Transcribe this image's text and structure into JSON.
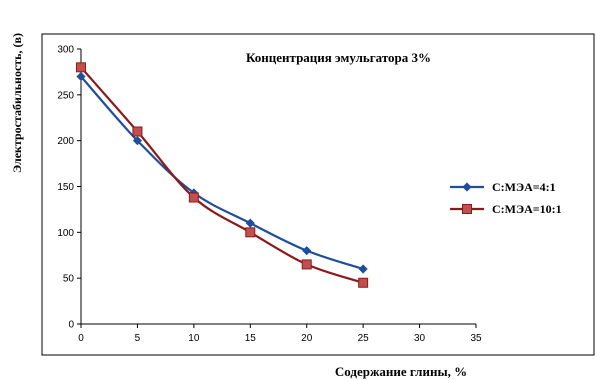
{
  "chart_data": {
    "type": "line",
    "title": "Концентрация эмульгатора 3%",
    "xlabel": "Содержание глины, %",
    "ylabel": "Электростабильность, (в)",
    "x_ticks": [
      "0",
      "5",
      "10",
      "15",
      "20",
      "25",
      "30",
      "35"
    ],
    "y_ticks": [
      "0",
      "50",
      "100",
      "150",
      "200",
      "250",
      "300"
    ],
    "xlim": [
      0,
      35
    ],
    "ylim": [
      0,
      300
    ],
    "grid": false,
    "legend_position": "right",
    "x": [
      0,
      5,
      10,
      15,
      20,
      25
    ],
    "series": [
      {
        "name": "С:МЭА=4:1",
        "values": [
          270,
          200,
          143,
          110,
          80,
          60
        ],
        "color": "#1f4e9c",
        "marker": "diamond"
      },
      {
        "name": "С:МЭА=10:1",
        "values": [
          280,
          210,
          138,
          100,
          65,
          45
        ],
        "color": "#8b1a1a",
        "marker": "square"
      }
    ]
  }
}
